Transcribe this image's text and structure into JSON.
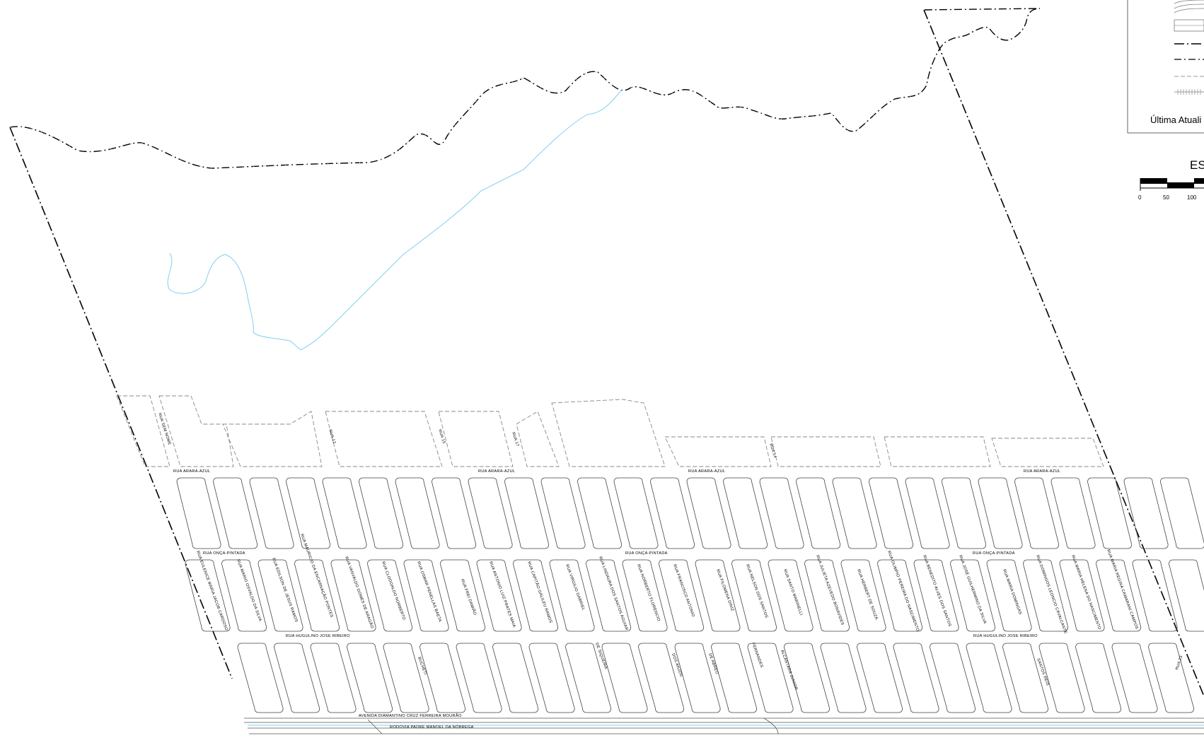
{
  "legend": {
    "last_update_label": "Última Atuali",
    "scale_title": "ES",
    "scale_ticks": [
      "0",
      "50",
      "100"
    ]
  },
  "streets": {
    "arara_azul_1": "RUA ARARA-AZUL",
    "arara_azul_2": "RUA ARARA-AZUL",
    "arara_azul_3": "RUA ARARA-AZUL",
    "arara_azul_4": "RUA ARARA-AZUL",
    "onca_pintada_1": "RUA ONÇA-PINTADA",
    "onca_pintada_2": "RUA ONÇA-PINTADA",
    "onca_pintada_3": "RUA ONÇA-PINTADA",
    "huguline_1": "RUA HUGULINO JOSE RIBEIRO",
    "huguline_2": "RUA HUGULINO JOSE RIBEIRO",
    "avenida": "AVENIDA DIAMANTINO CRUZ FERREIRA MOURÃO",
    "rodovia": "RODOVIA PADRE MANOEL DA NÓBREGA",
    "sem_nome": "RUA SEM NOME",
    "rua12": "RUA 12",
    "rua15": "RUA 15",
    "rua17": "RUA 17",
    "rua14": "RUA 14",
    "rua23": "RUA 23",
    "v01": "RUA EULENICE MARIA JACOB CARDOSO",
    "v02": "RUA MARIO OSVALDO DA SILVA",
    "v03": "RUA EDILSON DE JESUS RAMOS",
    "v04": "RUA MAURICIO DA ENCARNAÇÃO PONTES",
    "v05": "RUA VANVALDO GOMES DE ARAGÃO",
    "v06": "RUA CLODOALDO NORBERTO",
    "v07": "RUA OSMAR PENELLAS BAETA",
    "v08": "RUA FREI DAMIÃO",
    "v09": "RUA ANTONIO LUIZ PRATES MAIA",
    "v10": "RUA CAPITÃO GALILEU RAMOS",
    "v11": "RUA VIRGILIO GABRIEL",
    "v12": "RUA LINDAURA DOS SANTOS AGUIAR",
    "v13": "RUA NORBERTO FLORENCIO",
    "v14": "RUA FRANCISCO ANTONIO",
    "v15": "RUA FILOMENA DINIZ",
    "v16": "RUA NELSON DOS SANTOS",
    "v17": "RUA SANTO MARINELLI",
    "v18": "RUA JULIETA AZEVEDO BONAVIDES",
    "v19": "RUA HERBERT DE SOUZA",
    "v20": "RUA OLIMPIO PEREIRA DO NASCIMENTO",
    "v21": "RUA BENEDITO ALVES DOS SANTOS",
    "v22": "RUA JOSÉ GUILHERMINO DA SILVA",
    "v23": "RUA MARIA DOMINGAS",
    "v24": "RUA DOMINGOS LEONCIO CAVALCANTE",
    "v25": "RUA MARIA HELENA DO NASCIMENTO",
    "v26": "RUA MARIA REGINA CAMARANI CAMPOS",
    "l01": "BUCHETI",
    "l02": "DE SIQUEIRA",
    "l03": "DOS ANJOS",
    "l04": "DE ABREU",
    "l05": "FERNANDES",
    "l06": "ALCANTARA JUNIOR",
    "l07": "SANTOS REIS"
  },
  "colors": {
    "water": "#4fc3e8",
    "line": "#000000",
    "lot_outline": "#888888"
  }
}
